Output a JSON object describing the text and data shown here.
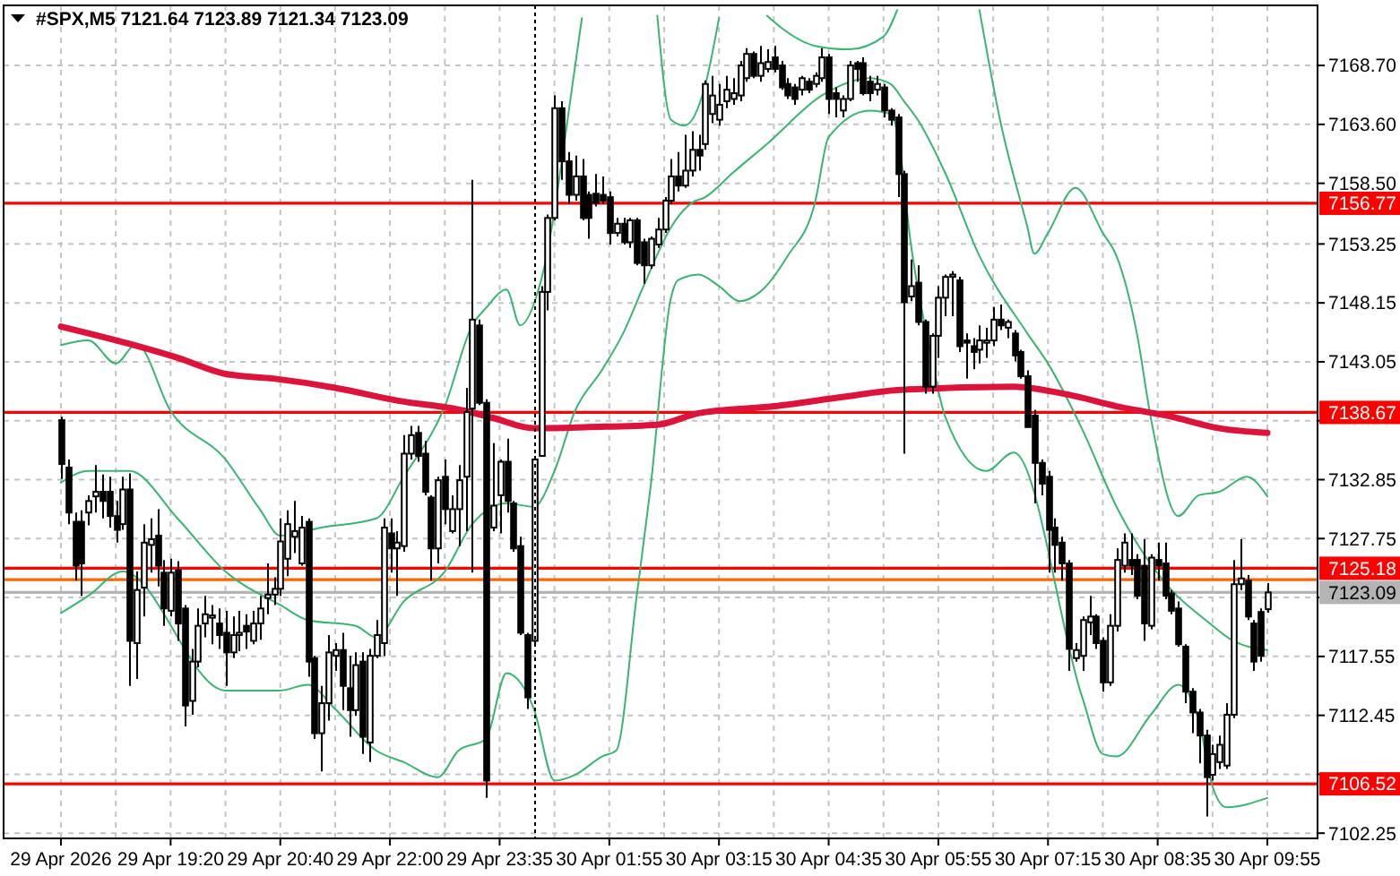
{
  "chart_data": {
    "type": "candlestick",
    "title": "#SPX,M5  7121.64 7123.89 7121.34 7123.09",
    "categories": [
      "29 Apr 2026",
      null,
      null,
      null,
      null,
      null,
      null,
      null,
      null,
      null,
      null,
      null,
      null,
      null,
      null,
      null,
      "29 Apr 19:20",
      null,
      null,
      null,
      null,
      null,
      null,
      null,
      null,
      null,
      null,
      null,
      null,
      null,
      null,
      null,
      "29 Apr 20:40",
      null,
      null,
      null,
      null,
      null,
      null,
      null,
      null,
      null,
      null,
      null,
      null,
      null,
      null,
      null,
      "29 Apr 22:00",
      null,
      null,
      null,
      null,
      null,
      null,
      null,
      null,
      null,
      null,
      null,
      null,
      null,
      null,
      null,
      "29 Apr 23:35",
      null,
      null,
      null,
      null,
      null,
      null,
      null,
      null,
      null,
      null,
      null,
      null,
      null,
      null,
      null,
      "30 Apr 01:55",
      null,
      null,
      null,
      null,
      null,
      null,
      null,
      null,
      null,
      null,
      null,
      null,
      null,
      null,
      null,
      "30 Apr 03:15",
      null,
      null,
      null,
      null,
      null,
      null,
      null,
      null,
      null,
      null,
      null,
      null,
      null,
      null,
      null,
      "30 Apr 04:35",
      null,
      null,
      null,
      null,
      null,
      null,
      null,
      null,
      null,
      null,
      null,
      null,
      null,
      null,
      null,
      "30 Apr 05:55",
      null,
      null,
      null,
      null,
      null,
      null,
      null,
      null,
      null,
      null,
      null,
      null,
      null,
      null,
      null,
      "30 Apr 07:15",
      null,
      null,
      null,
      null,
      null,
      null,
      null,
      null,
      null,
      null,
      null,
      null,
      null,
      null,
      null,
      "30 Apr 08:35",
      null,
      null,
      null,
      null,
      null,
      null,
      null,
      null,
      null,
      null,
      null,
      null,
      null,
      null,
      null,
      "30 Apr 09:55"
    ],
    "ylim": [
      7101.8,
      7173.9
    ],
    "yticks": [
      7102.25,
      {
        "value": 7107.35,
        "label": null
      },
      7112.45,
      7117.55,
      {
        "value": 7122.65,
        "label": null
      },
      7127.75,
      7132.85,
      {
        "value": 7137.95,
        "label": null
      },
      7143.05,
      7148.15,
      7153.25,
      {
        "value": 7158.5,
        "label": "7158.50"
      },
      {
        "value": 7163.6,
        "label": "7163.60"
      },
      {
        "value": 7168.7,
        "label": "7168.70"
      }
    ],
    "grid": true,
    "ohlc": [
      [
        7138.0,
        7138.3,
        7132.9,
        7134.2
      ],
      [
        7133.9,
        7134.6,
        7129.0,
        7130.0
      ],
      [
        7129.2,
        7130.0,
        7124.1,
        7125.4
      ],
      [
        7129.2,
        7130.2,
        7122.8,
        7125.6
      ],
      [
        7130.0,
        7131.5,
        7128.9,
        7131.0
      ],
      [
        7131.4,
        7134.1,
        7130.0,
        7131.8
      ],
      [
        7131.8,
        7133.3,
        7129.5,
        7131.0
      ],
      [
        7131.8,
        7133.1,
        7128.7,
        7129.7
      ],
      [
        7129.7,
        7131.0,
        7127.4,
        7128.5
      ],
      [
        7129.0,
        7133.1,
        7128.5,
        7132.0
      ],
      [
        7132.0,
        7133.4,
        7115.0,
        7118.9
      ],
      [
        7118.7,
        7124.9,
        7115.6,
        7123.3
      ],
      [
        7123.5,
        7129.0,
        7121.0,
        7127.4
      ],
      [
        7127.2,
        7129.5,
        7124.8,
        7127.7
      ],
      [
        7128.0,
        7130.3,
        7123.6,
        7125.4
      ],
      [
        7124.8,
        7125.9,
        7120.2,
        7121.7
      ],
      [
        7121.5,
        7126.0,
        7121.0,
        7124.8
      ],
      [
        7125.0,
        7125.8,
        7118.9,
        7120.4
      ],
      [
        7121.7,
        7122.0,
        7111.5,
        7113.3
      ],
      [
        7113.7,
        7118.2,
        7112.5,
        7117.1
      ],
      [
        7117.1,
        7121.7,
        7116.6,
        7120.2
      ],
      [
        7120.4,
        7122.8,
        7119.2,
        7121.2
      ],
      [
        7120.9,
        7122.0,
        7118.6,
        7121.1
      ],
      [
        7120.4,
        7121.7,
        7118.2,
        7119.4
      ],
      [
        7119.6,
        7121.5,
        7115.0,
        7117.9
      ],
      [
        7117.9,
        7121.0,
        7117.4,
        7119.4
      ],
      [
        7119.4,
        7121.5,
        7118.0,
        7119.6
      ],
      [
        7120.2,
        7121.2,
        7118.2,
        7119.7
      ],
      [
        7118.9,
        7121.5,
        7118.6,
        7120.4
      ],
      [
        7120.4,
        7122.8,
        7119.0,
        7121.7
      ],
      [
        7122.6,
        7125.6,
        7121.2,
        7122.9
      ],
      [
        7122.9,
        7124.4,
        7122.0,
        7123.4
      ],
      [
        7123.4,
        7129.5,
        7122.8,
        7127.5
      ],
      [
        7126.0,
        7130.2,
        7124.5,
        7129.0
      ],
      [
        7127.9,
        7131.0,
        7126.5,
        7128.4
      ],
      [
        7125.6,
        7129.7,
        7125.4,
        7128.7
      ],
      [
        7129.2,
        7129.5,
        7115.8,
        7117.1
      ],
      [
        7117.4,
        7117.6,
        7110.4,
        7110.9
      ],
      [
        7110.9,
        7115.0,
        7107.6,
        7113.5
      ],
      [
        7113.5,
        7119.4,
        7112.0,
        7117.9
      ],
      [
        7117.6,
        7118.7,
        7116.3,
        7118.1
      ],
      [
        7118.1,
        7119.6,
        7112.9,
        7115.0
      ],
      [
        7114.8,
        7117.6,
        7110.6,
        7112.9
      ],
      [
        7112.9,
        7117.9,
        7112.4,
        7116.8
      ],
      [
        7117.1,
        7117.9,
        7109.1,
        7110.6
      ],
      [
        7110.1,
        7118.2,
        7108.4,
        7117.6
      ],
      [
        7117.6,
        7120.7,
        7117.4,
        7119.4
      ],
      [
        7118.7,
        7129.5,
        7117.6,
        7128.7
      ],
      [
        7128.2,
        7129.5,
        7124.8,
        7126.9
      ],
      [
        7126.9,
        7128.4,
        7122.8,
        7127.4
      ],
      [
        7127.1,
        7136.7,
        7126.6,
        7135.1
      ],
      [
        7135.1,
        7137.5,
        7134.6,
        7136.7
      ],
      [
        7136.9,
        7137.5,
        7134.4,
        7134.9
      ],
      [
        7135.1,
        7136.2,
        7131.5,
        7131.8
      ],
      [
        7131.3,
        7131.5,
        7124.1,
        7126.9
      ],
      [
        7126.9,
        7133.1,
        7125.6,
        7132.8
      ],
      [
        7133.1,
        7134.6,
        7129.0,
        7130.3
      ],
      [
        7128.4,
        7131.5,
        7128.2,
        7130.3
      ],
      [
        7130.3,
        7134.1,
        7127.1,
        7132.8
      ],
      [
        7133.1,
        7140.8,
        7128.4,
        7138.7
      ],
      [
        7139.0,
        7158.8,
        7124.8,
        7146.7
      ],
      [
        7146.2,
        7146.7,
        7139.3,
        7139.5
      ],
      [
        7139.5,
        7139.8,
        7105.3,
        7106.8
      ],
      [
        7128.7,
        7136.0,
        7128.4,
        7130.6
      ],
      [
        7131.5,
        7134.6,
        7128.2,
        7134.4
      ],
      [
        7134.4,
        7136.4,
        7130.0,
        7131.0
      ],
      [
        7130.8,
        7131.0,
        7126.6,
        7126.9
      ],
      [
        7127.1,
        7127.9,
        7119.4,
        7119.6
      ],
      [
        7119.4,
        7119.6,
        7113.0,
        7114.0
      ],
      [
        7118.9,
        7134.9,
        7118.6,
        7134.6
      ],
      [
        7134.9,
        7149.6,
        7134.9,
        7149.1
      ],
      [
        7149.1,
        7155.8,
        7147.5,
        7155.5
      ],
      [
        7155.5,
        7166.1,
        7155.3,
        7165.0
      ],
      [
        7165.0,
        7165.6,
        7158.8,
        7160.4
      ],
      [
        7160.4,
        7161.2,
        7156.7,
        7157.5
      ],
      [
        7157.5,
        7160.9,
        7157.0,
        7159.1
      ],
      [
        7159.1,
        7160.6,
        7155.3,
        7155.5
      ],
      [
        7157.5,
        7157.8,
        7153.7,
        7155.5
      ],
      [
        7157.6,
        7159.3,
        7156.5,
        7156.8
      ],
      [
        7157.5,
        7159.1,
        7156.7,
        7157.0
      ],
      [
        7157.3,
        7157.8,
        7153.2,
        7154.2
      ],
      [
        7154.2,
        7155.5,
        7153.9,
        7155.0
      ],
      [
        7155.0,
        7155.5,
        7153.2,
        7153.4
      ],
      [
        7153.4,
        7155.5,
        7152.9,
        7155.3
      ],
      [
        7155.3,
        7155.5,
        7151.4,
        7151.6
      ],
      [
        7153.4,
        7153.7,
        7149.8,
        7151.4
      ],
      [
        7151.4,
        7153.9,
        7151.1,
        7153.7
      ],
      [
        7153.2,
        7155.5,
        7152.9,
        7154.5
      ],
      [
        7154.5,
        7157.3,
        7154.2,
        7157.0
      ],
      [
        7157.0,
        7160.6,
        7156.7,
        7159.1
      ],
      [
        7159.1,
        7161.2,
        7157.8,
        7158.3
      ],
      [
        7158.3,
        7162.7,
        7158.1,
        7159.6
      ],
      [
        7159.6,
        7163.0,
        7159.1,
        7161.4
      ],
      [
        7161.4,
        7162.7,
        7159.6,
        7160.9
      ],
      [
        7161.9,
        7167.4,
        7161.4,
        7167.1
      ],
      [
        7164.5,
        7167.8,
        7163.7,
        7166.1
      ],
      [
        7164.0,
        7167.1,
        7163.5,
        7165.3
      ],
      [
        7165.6,
        7167.8,
        7165.0,
        7166.6
      ],
      [
        7165.8,
        7167.6,
        7165.3,
        7166.3
      ],
      [
        7166.1,
        7169.1,
        7165.6,
        7168.7
      ],
      [
        7167.6,
        7170.2,
        7167.3,
        7169.7
      ],
      [
        7169.7,
        7169.9,
        7167.6,
        7167.8
      ],
      [
        7167.8,
        7170.4,
        7167.3,
        7168.9
      ],
      [
        7168.4,
        7170.1,
        7168.1,
        7169.0
      ],
      [
        7169.4,
        7170.4,
        7168.1,
        7168.4
      ],
      [
        7168.7,
        7169.1,
        7166.6,
        7166.8
      ],
      [
        7167.1,
        7167.6,
        7165.8,
        7166.1
      ],
      [
        7166.8,
        7167.1,
        7165.3,
        7165.8
      ],
      [
        7166.6,
        7167.8,
        7166.1,
        7167.6
      ],
      [
        7167.3,
        7167.6,
        7166.3,
        7166.6
      ],
      [
        7167.1,
        7168.1,
        7166.8,
        7167.8
      ],
      [
        7167.6,
        7170.2,
        7167.3,
        7169.4
      ],
      [
        7169.4,
        7169.7,
        7164.5,
        7165.8
      ],
      [
        7166.3,
        7166.8,
        7164.2,
        7165.8
      ],
      [
        7164.8,
        7166.1,
        7164.2,
        7165.8
      ],
      [
        7165.8,
        7169.1,
        7165.6,
        7168.7
      ],
      [
        7168.9,
        7169.1,
        7167.3,
        7168.4
      ],
      [
        7168.9,
        7169.4,
        7166.1,
        7166.3
      ],
      [
        7167.3,
        7167.8,
        7165.6,
        7166.3
      ],
      [
        7166.6,
        7167.8,
        7166.1,
        7167.1
      ],
      [
        7166.8,
        7167.1,
        7164.2,
        7164.8
      ],
      [
        7164.8,
        7165.0,
        7163.5,
        7164.0
      ],
      [
        7164.2,
        7164.5,
        7157.3,
        7159.3
      ],
      [
        7159.3,
        7159.6,
        7135.1,
        7148.2
      ],
      [
        7148.7,
        7151.9,
        7148.3,
        7149.6
      ],
      [
        7149.9,
        7151.4,
        7146.2,
        7146.5
      ],
      [
        7146.5,
        7146.7,
        7140.3,
        7140.9
      ],
      [
        7140.9,
        7145.5,
        7140.3,
        7145.3
      ],
      [
        7145.3,
        7149.6,
        7143.4,
        7148.6
      ],
      [
        7148.6,
        7150.6,
        7147.0,
        7150.4
      ],
      [
        7150.4,
        7150.9,
        7147.0,
        7150.6
      ],
      [
        7150.1,
        7150.4,
        7143.9,
        7144.4
      ],
      [
        7144.9,
        7145.5,
        7141.6,
        7144.7
      ],
      [
        7144.4,
        7145.1,
        7142.4,
        7143.9
      ],
      [
        7144.1,
        7146.2,
        7142.9,
        7144.9
      ],
      [
        7144.7,
        7146.0,
        7143.4,
        7144.9
      ],
      [
        7144.9,
        7147.8,
        7144.4,
        7146.7
      ],
      [
        7146.7,
        7148.0,
        7145.8,
        7146.2
      ],
      [
        7146.0,
        7146.7,
        7145.1,
        7146.5
      ],
      [
        7145.5,
        7145.8,
        7143.1,
        7143.6
      ],
      [
        7143.9,
        7144.1,
        7141.6,
        7141.8
      ],
      [
        7141.8,
        7142.3,
        7137.4,
        7137.4
      ],
      [
        7138.4,
        7138.9,
        7130.8,
        7134.3
      ],
      [
        7134.3,
        7134.6,
        7131.5,
        7132.5
      ],
      [
        7133.1,
        7133.6,
        7124.8,
        7128.5
      ],
      [
        7128.7,
        7129.5,
        7124.8,
        7127.2
      ],
      [
        7127.4,
        7127.9,
        7124.1,
        7125.6
      ],
      [
        7125.6,
        7125.9,
        7116.3,
        7118.2
      ],
      [
        7117.4,
        7118.7,
        7117.1,
        7118.1
      ],
      [
        7117.6,
        7121.0,
        7116.3,
        7120.7
      ],
      [
        7120.5,
        7122.8,
        7119.4,
        7121.0
      ],
      [
        7121.0,
        7121.2,
        7118.2,
        7118.7
      ],
      [
        7118.9,
        7119.2,
        7114.5,
        7115.3
      ],
      [
        7115.3,
        7121.2,
        7115.0,
        7120.2
      ],
      [
        7120.2,
        7126.9,
        7119.7,
        7125.9
      ],
      [
        7125.4,
        7128.2,
        7124.8,
        7127.4
      ],
      [
        7125.9,
        7128.2,
        7124.6,
        7125.4
      ],
      [
        7125.9,
        7126.4,
        7122.5,
        7122.8
      ],
      [
        7125.4,
        7127.7,
        7118.9,
        7120.4
      ],
      [
        7120.2,
        7126.4,
        7119.9,
        7126.1
      ],
      [
        7125.9,
        7127.4,
        7124.1,
        7125.4
      ],
      [
        7125.6,
        7127.4,
        7122.5,
        7122.8
      ],
      [
        7123.0,
        7123.3,
        7121.2,
        7121.5
      ],
      [
        7121.7,
        7122.3,
        7118.4,
        7118.6
      ],
      [
        7118.4,
        7118.6,
        7113.5,
        7114.5
      ],
      [
        7114.5,
        7114.8,
        7110.9,
        7112.7
      ],
      [
        7112.7,
        7113.0,
        7108.3,
        7110.7
      ],
      [
        7110.7,
        7111.2,
        7103.7,
        7107.1
      ],
      [
        7107.3,
        7109.9,
        7106.8,
        7109.1
      ],
      [
        7108.4,
        7110.7,
        7107.8,
        7109.9
      ],
      [
        7108.1,
        7113.5,
        7107.8,
        7112.5
      ],
      [
        7112.5,
        7125.9,
        7112.2,
        7123.8
      ],
      [
        7123.8,
        7127.7,
        7123.3,
        7124.3
      ],
      [
        7124.1,
        7124.6,
        7120.7,
        7121.0
      ],
      [
        7120.4,
        7120.7,
        7116.3,
        7117.1
      ],
      [
        7121.4,
        7121.7,
        7117.1,
        7117.6
      ],
      [
        7121.64,
        7123.89,
        7121.34,
        7123.09
      ]
    ],
    "series": [
      {
        "type": "line",
        "color": "#3cb371",
        "values": [
          7144.5,
          null,
          null,
          null,
          7144.9,
          null,
          null,
          null,
          7142.9,
          null,
          null,
          7144.6,
          null,
          null,
          null,
          null,
          7138.8,
          null,
          null,
          null,
          null,
          null,
          null,
          null,
          7134.6,
          null,
          null,
          null,
          null,
          7130.3,
          null,
          null,
          7128.0,
          null,
          null,
          null,
          null,
          null,
          7128.7,
          null,
          null,
          null,
          null,
          null,
          null,
          null,
          7129.5,
          null,
          null,
          null,
          7133.1,
          null,
          null,
          null,
          null,
          null,
          7139.2,
          null,
          null,
          null,
          7146.2,
          null,
          7147.7,
          null,
          null,
          7149.3,
          null,
          7146.2,
          null,
          null,
          7150.0,
          null,
          null,
          null,
          null,
          7168.6,
          7172.8,
          null,
          null,
          null,
          null,
          null,
          null,
          null,
          null,
          null,
          null,
          null,
          null,
          null,
          null,
          null,
          null,
          null,
          null,
          null,
          null,
          null,
          null,
          null,
          null,
          null,
          null,
          null,
          null,
          null,
          null,
          null,
          null,
          null,
          null,
          null,
          null,
          null,
          null,
          null,
          null,
          null,
          null,
          null,
          null,
          null,
          null,
          null,
          null,
          null,
          null,
          null,
          null,
          null,
          null,
          null,
          null,
          null,
          null,
          null,
          null,
          null,
          null,
          null,
          null,
          null,
          null,
          null,
          null,
          null,
          null,
          null,
          null,
          null,
          null,
          null,
          null,
          null,
          null,
          null,
          null,
          null,
          null,
          null,
          null,
          null,
          null,
          null,
          null,
          null,
          null,
          null,
          null,
          null,
          null,
          null,
          null,
          null,
          null,
          null,
          null
        ]
      },
      {
        "type": "line",
        "color": "#3cb371",
        "values": [
          null,
          null,
          null,
          null,
          null,
          null,
          null,
          null,
          null,
          null,
          null,
          null,
          null,
          null,
          null,
          null,
          null,
          null,
          null,
          null,
          null,
          null,
          null,
          null,
          null,
          null,
          null,
          null,
          null,
          null,
          null,
          null,
          null,
          null,
          null,
          null,
          null,
          null,
          null,
          null,
          null,
          null,
          null,
          null,
          null,
          null,
          null,
          null,
          null,
          null,
          null,
          null,
          null,
          null,
          null,
          null,
          null,
          null,
          null,
          null,
          null,
          null,
          null,
          null,
          null,
          null,
          null,
          null,
          null,
          null,
          null,
          null,
          null,
          null,
          null,
          null,
          null,
          null,
          null,
          null,
          null,
          null,
          null,
          null,
          null,
          null,
          null,
          7173.0,
          null,
          7164.0,
          null,
          7163.5,
          null,
          null,
          7167.0,
          null,
          7172.8,
          null,
          null,
          null,
          null,
          null,
          null,
          null,
          null,
          null,
          null,
          null,
          null,
          null,
          null,
          null,
          null,
          null,
          null,
          null,
          null,
          null,
          null,
          null,
          null,
          null,
          null,
          null,
          null,
          null,
          null,
          null,
          null,
          null,
          null,
          null,
          null,
          null,
          null,
          null,
          null,
          null,
          null,
          null,
          null,
          null,
          null,
          null,
          null,
          null,
          null,
          null,
          null,
          null,
          null,
          null,
          null,
          null,
          null,
          null,
          null,
          null,
          null,
          null,
          null,
          null,
          null,
          null,
          null,
          null,
          null,
          null,
          null,
          null,
          null,
          null,
          null,
          null,
          null,
          null,
          null
        ]
      },
      {
        "type": "line",
        "color": "#3cb371",
        "values": [
          null,
          null,
          null,
          null,
          null,
          null,
          null,
          null,
          null,
          null,
          null,
          null,
          null,
          null,
          null,
          null,
          null,
          null,
          null,
          null,
          null,
          null,
          null,
          null,
          null,
          null,
          null,
          null,
          null,
          null,
          null,
          null,
          null,
          null,
          null,
          null,
          null,
          null,
          null,
          null,
          null,
          null,
          null,
          null,
          null,
          null,
          null,
          null,
          null,
          null,
          null,
          null,
          null,
          null,
          null,
          null,
          null,
          null,
          null,
          null,
          null,
          null,
          null,
          null,
          null,
          null,
          null,
          null,
          null,
          null,
          null,
          null,
          null,
          null,
          null,
          null,
          null,
          null,
          null,
          null,
          null,
          null,
          null,
          null,
          null,
          null,
          null,
          null,
          null,
          null,
          null,
          null,
          null,
          null,
          null,
          null,
          null,
          null,
          null,
          null,
          null,
          null,
          null,
          7173.0,
          null,
          7172.0,
          null,
          null,
          null,
          null,
          7170.4,
          null,
          null,
          null,
          null,
          7170.1,
          null,
          null,
          null,
          null,
          7171.2,
          null,
          7173.5,
          null,
          null,
          null,
          null,
          null,
          null,
          null,
          null,
          null,
          null,
          null,
          null,
          null,
          null,
          null,
          null,
          null,
          null,
          null,
          null,
          null,
          null,
          null,
          null,
          null,
          null,
          null,
          null,
          null,
          null,
          null,
          null,
          null,
          null,
          null,
          null,
          null,
          null,
          null,
          null,
          null,
          null,
          null,
          null,
          null,
          null,
          null,
          null,
          null,
          null,
          null,
          null,
          null,
          null
        ]
      },
      {
        "type": "line",
        "color": "#3cb371",
        "values": [
          null,
          null,
          null,
          null,
          null,
          null,
          null,
          null,
          null,
          null,
          null,
          null,
          null,
          null,
          null,
          null,
          null,
          null,
          null,
          null,
          null,
          null,
          null,
          null,
          null,
          null,
          null,
          null,
          null,
          null,
          null,
          null,
          null,
          null,
          null,
          null,
          null,
          null,
          null,
          null,
          null,
          null,
          null,
          null,
          null,
          null,
          null,
          null,
          null,
          null,
          null,
          null,
          null,
          null,
          null,
          null,
          null,
          null,
          null,
          null,
          null,
          null,
          null,
          null,
          null,
          null,
          null,
          null,
          null,
          null,
          null,
          null,
          null,
          null,
          null,
          null,
          null,
          null,
          null,
          null,
          null,
          null,
          null,
          null,
          null,
          null,
          null,
          null,
          null,
          null,
          null,
          null,
          null,
          null,
          null,
          null,
          null,
          null,
          null,
          null,
          null,
          null,
          null,
          null,
          null,
          null,
          null,
          null,
          null,
          null,
          null,
          null,
          null,
          null,
          null,
          null,
          null,
          null,
          null,
          null,
          null,
          null,
          null,
          null,
          null,
          null,
          null,
          null,
          null,
          null,
          null,
          null,
          null,
          null,
          7173.5,
          null,
          null,
          7164.0,
          null,
          null,
          null,
          7154.7,
          7152.4,
          null,
          7154.2,
          null,
          null,
          null,
          7158.1,
          null,
          null,
          null,
          7154.2,
          null,
          7152.2,
          null,
          null,
          7145.4,
          null,
          7138.2,
          null,
          null,
          null,
          7129.7,
          null,
          null,
          7131.5,
          null,
          null,
          7131.8,
          null,
          null,
          null,
          7133.1,
          null,
          null,
          7131.4
        ]
      },
      {
        "type": "line",
        "color": "#3cb371",
        "values": [
          7132.6,
          null,
          null,
          null,
          7133.6,
          null,
          null,
          null,
          null,
          null,
          7133.6,
          null,
          null,
          null,
          null,
          null,
          null,
          7129.5,
          null,
          null,
          null,
          null,
          null,
          null,
          7124.9,
          null,
          null,
          null,
          null,
          null,
          null,
          null,
          7122.0,
          null,
          null,
          null,
          7120.7,
          null,
          null,
          null,
          null,
          null,
          null,
          7120.2,
          null,
          null,
          7119.2,
          null,
          null,
          null,
          7122.3,
          null,
          null,
          null,
          null,
          null,
          7124.9,
          null,
          null,
          null,
          7129.0,
          null,
          null,
          null,
          null,
          7130.8,
          null,
          null,
          null,
          7130.5,
          null,
          null,
          7133.6,
          null,
          null,
          7138.8,
          null,
          null,
          null,
          7142.4,
          null,
          null,
          7145.5,
          null,
          null,
          7149.6,
          null,
          null,
          null,
          7154.7,
          null,
          null,
          7156.8,
          null,
          7157.3,
          null,
          null,
          null,
          7159.4,
          null,
          null,
          null,
          null,
          7161.9,
          null,
          null,
          null,
          null,
          null,
          null,
          null,
          7166.1,
          null,
          null,
          null,
          null,
          null,
          null,
          7167.6,
          null,
          null,
          7167.1,
          null,
          7165.6,
          null,
          7164.0,
          null,
          null,
          null,
          7159.4,
          null,
          null,
          null,
          null,
          7152.2,
          null,
          null,
          null,
          null,
          null,
          null,
          7145.5,
          null,
          null,
          7142.9,
          null,
          null,
          null,
          null,
          7137.2,
          null,
          null,
          null,
          null,
          7130.5,
          null,
          null,
          null,
          null,
          null,
          null,
          null,
          7123.3,
          null,
          null,
          null,
          null,
          7120.7,
          null,
          null,
          null,
          7118.9,
          null,
          null,
          null,
          null,
          7118.1
        ]
      },
      {
        "type": "line",
        "color": "#3cb371",
        "values": [
          7121.3,
          null,
          null,
          null,
          7122.8,
          null,
          null,
          null,
          null,
          7124.9,
          null,
          null,
          null,
          null,
          null,
          null,
          null,
          null,
          null,
          null,
          null,
          null,
          null,
          null,
          7114.6,
          null,
          null,
          null,
          null,
          null,
          null,
          null,
          7114.6,
          null,
          null,
          null,
          7115.1,
          null,
          null,
          null,
          7113.0,
          null,
          null,
          null,
          null,
          null,
          7109.4,
          null,
          null,
          null,
          7108.4,
          null,
          null,
          null,
          null,
          7107.1,
          null,
          null,
          7109.4,
          null,
          null,
          null,
          7110.4,
          null,
          null,
          7116.1,
          null,
          null,
          null,
          7113.0,
          null,
          null,
          7106.8,
          null,
          null,
          7107.3,
          null,
          null,
          null,
          7108.9,
          null,
          7109.4,
          null,
          null,
          7122.8,
          null,
          7132.1,
          null,
          null,
          7148.6,
          7150.1,
          null,
          null,
          7150.6,
          null,
          null,
          7149.6,
          null,
          null,
          7148.3,
          null,
          null,
          7149.1,
          null,
          null,
          null,
          7152.2,
          null,
          null,
          null,
          7156.8,
          null,
          7162.5,
          null,
          null,
          null,
          null,
          null,
          7164.8,
          null,
          null,
          7164.5,
          7163.0,
          null,
          7153.2,
          null,
          null,
          7143.4,
          null,
          7138.3,
          null,
          null,
          null,
          null,
          null,
          7133.6,
          null,
          null,
          null,
          7135.2,
          null,
          null,
          null,
          null,
          null,
          null,
          null,
          null,
          null,
          7114.0,
          null,
          null,
          7109.1,
          null,
          7108.9,
          null,
          null,
          null,
          null,
          7112.5,
          null,
          null,
          null,
          7115.1,
          null,
          null,
          7112.0,
          null,
          7106.3,
          null,
          7104.5,
          null,
          null,
          null,
          null,
          null,
          7105.3
        ]
      },
      {
        "type": "line",
        "color": "#dc143c",
        "values": [
          7146.1,
          null,
          null,
          null,
          null,
          null,
          null,
          null,
          null,
          null,
          7144.6,
          null,
          null,
          null,
          null,
          null,
          null,
          7143.4,
          null,
          null,
          null,
          null,
          null,
          null,
          7142.0,
          null,
          null,
          null,
          null,
          null,
          null,
          7141.6,
          null,
          null,
          null,
          null,
          null,
          null,
          null,
          null,
          7140.8,
          null,
          null,
          null,
          null,
          null,
          null,
          null,
          null,
          7139.7,
          null,
          null,
          null,
          null,
          null,
          null,
          null,
          null,
          null,
          7138.8,
          null,
          null,
          null,
          7138.2,
          null,
          null,
          null,
          null,
          null,
          7137.3,
          null,
          null,
          null,
          null,
          null,
          null,
          null,
          7137.4,
          null,
          null,
          null,
          null,
          null,
          null,
          null,
          null,
          null,
          7137.6,
          null,
          null,
          null,
          null,
          null,
          7138.6,
          null,
          null,
          null,
          null,
          null,
          null,
          null,
          null,
          null,
          null,
          7139.2,
          null,
          null,
          null,
          null,
          null,
          null,
          null,
          null,
          null,
          7140.0,
          null,
          null,
          null,
          null,
          null,
          null,
          null,
          7140.6,
          null,
          null,
          null,
          null,
          null,
          null,
          null,
          null,
          null,
          null,
          null,
          null,
          null,
          null,
          null,
          null,
          7140.9,
          null,
          null,
          null,
          null,
          null,
          null,
          null,
          7140.2,
          null,
          null,
          null,
          null,
          null,
          null,
          7139.2,
          null,
          null,
          null,
          null,
          null,
          null,
          null,
          7138.3,
          null,
          null,
          null,
          null,
          null,
          null,
          7137.3,
          null,
          null,
          null,
          null,
          null,
          null,
          7136.9
        ]
      }
    ],
    "ref_lines": [
      {
        "axis": "y",
        "value": 7156.77,
        "label": "7156.77",
        "color": "#ff0000"
      },
      {
        "axis": "y",
        "value": 7138.67,
        "label": "7138.67",
        "color": "#ff0000"
      },
      {
        "axis": "y",
        "value": 7125.18,
        "label": "7125.18",
        "color": "#ff0000"
      },
      {
        "axis": "y",
        "value": 7106.52,
        "label": "7106.52",
        "color": "#ff0000"
      },
      {
        "axis": "y",
        "value": 7124.2,
        "label": null,
        "color": "#ff6600"
      },
      {
        "axis": "y",
        "value": 7123.09,
        "label": "7123.09",
        "color": "#b4b4b4"
      }
    ]
  }
}
